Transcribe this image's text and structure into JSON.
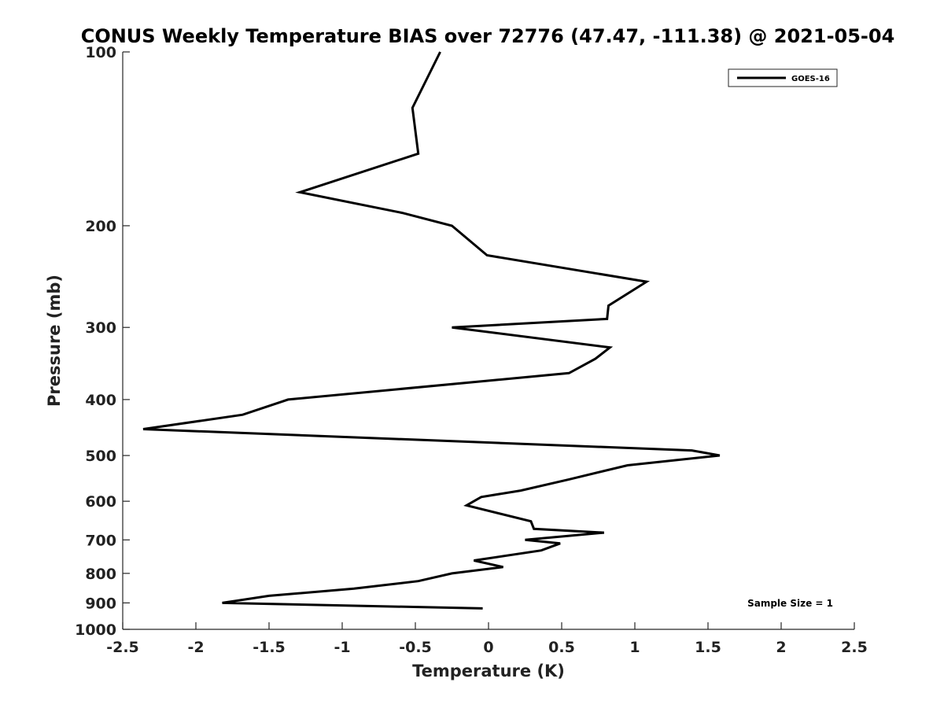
{
  "chart_data": {
    "type": "line",
    "title": "CONUS Weekly Temperature BIAS over 72776 (47.47, -111.38) @ 2021-05-04",
    "xlabel": "Temperature (K)",
    "ylabel": "Pressure (mb)",
    "xlim": [
      -2.5,
      2.5
    ],
    "ylim": [
      1000,
      100
    ],
    "y_scale": "log",
    "y_reversed": true,
    "x_ticks": [
      -2.5,
      -2,
      -1.5,
      -1,
      -0.5,
      0,
      0.5,
      1,
      1.5,
      2,
      2.5
    ],
    "x_tick_labels": [
      "-2.5",
      "-2",
      "-1.5",
      "-1",
      "-0.5",
      "0",
      "0.5",
      "1",
      "1.5",
      "2",
      "2.5"
    ],
    "y_ticks": [
      100,
      200,
      300,
      400,
      500,
      600,
      700,
      800,
      900,
      1000
    ],
    "y_tick_labels": [
      "100",
      "200",
      "300",
      "400",
      "500",
      "600",
      "700",
      "800",
      "900",
      "1000"
    ],
    "grid": false,
    "legend_position": "top-right",
    "series": [
      {
        "name": "GOES-16",
        "color": "#000000",
        "x": [
          -0.33,
          -0.52,
          -0.48,
          -1.29,
          -0.59,
          -0.25,
          -0.01,
          1.08,
          0.82,
          0.81,
          -0.25,
          0.83,
          0.73,
          0.55,
          -1.37,
          -1.68,
          -2.36,
          1.39,
          1.58,
          0.95,
          0.55,
          0.22,
          -0.05,
          -0.15,
          0.29,
          0.31,
          0.79,
          0.25,
          0.49,
          0.36,
          -0.1,
          0.1,
          -0.25,
          -0.48,
          -0.92,
          -1.5,
          -1.82,
          -0.04
        ],
        "y": [
          100,
          125,
          150,
          175,
          190,
          200,
          225,
          250,
          275,
          290,
          300,
          325,
          340,
          360,
          400,
          425,
          450,
          490,
          500,
          520,
          550,
          575,
          590,
          610,
          650,
          670,
          680,
          700,
          710,
          730,
          760,
          780,
          800,
          825,
          850,
          875,
          900,
          920
        ]
      }
    ],
    "annotations": [
      "Sample Size = 1"
    ]
  }
}
